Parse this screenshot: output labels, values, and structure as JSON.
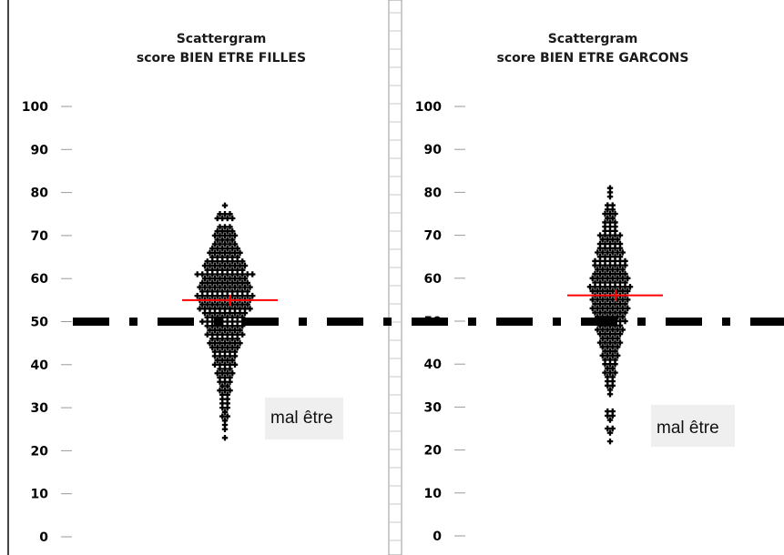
{
  "reference_line": {
    "value": 50,
    "color": "#000000"
  },
  "colors": {
    "points": "#000000",
    "mean": "#ff0000",
    "frame": "#444444",
    "annotation_bg": "#efefef"
  },
  "chart_data": [
    {
      "type": "scatter",
      "title_line1": "Scattergram",
      "title_line2": "score BIEN ETRE FILLES",
      "ylim": [
        0,
        100
      ],
      "yticks": [
        "0",
        "10",
        "20",
        "30",
        "40",
        "50",
        "60",
        "70",
        "80",
        "90",
        "100"
      ],
      "mean": 55,
      "annotation": "mal être",
      "points": [
        {
          "v": 77,
          "n": 1
        },
        {
          "v": 75,
          "n": 3
        },
        {
          "v": 74,
          "n": 4
        },
        {
          "v": 72,
          "n": 3
        },
        {
          "v": 71,
          "n": 4
        },
        {
          "v": 70,
          "n": 5
        },
        {
          "v": 69,
          "n": 4
        },
        {
          "v": 68,
          "n": 5
        },
        {
          "v": 67,
          "n": 6
        },
        {
          "v": 66,
          "n": 7
        },
        {
          "v": 65,
          "n": 6
        },
        {
          "v": 64,
          "n": 8
        },
        {
          "v": 63,
          "n": 9
        },
        {
          "v": 62,
          "n": 8
        },
        {
          "v": 61,
          "n": 12
        },
        {
          "v": 60,
          "n": 9
        },
        {
          "v": 59,
          "n": 10
        },
        {
          "v": 58,
          "n": 11
        },
        {
          "v": 57,
          "n": 10
        },
        {
          "v": 56,
          "n": 12
        },
        {
          "v": 55,
          "n": 11
        },
        {
          "v": 54,
          "n": 10
        },
        {
          "v": 53,
          "n": 11
        },
        {
          "v": 52,
          "n": 9
        },
        {
          "v": 51,
          "n": 8
        },
        {
          "v": 50,
          "n": 10
        },
        {
          "v": 49,
          "n": 8
        },
        {
          "v": 48,
          "n": 7
        },
        {
          "v": 47,
          "n": 8
        },
        {
          "v": 46,
          "n": 6
        },
        {
          "v": 45,
          "n": 7
        },
        {
          "v": 44,
          "n": 6
        },
        {
          "v": 43,
          "n": 5
        },
        {
          "v": 42,
          "n": 5
        },
        {
          "v": 41,
          "n": 4
        },
        {
          "v": 40,
          "n": 5
        },
        {
          "v": 39,
          "n": 3
        },
        {
          "v": 38,
          "n": 4
        },
        {
          "v": 37,
          "n": 3
        },
        {
          "v": 36,
          "n": 3
        },
        {
          "v": 35,
          "n": 2
        },
        {
          "v": 34,
          "n": 3
        },
        {
          "v": 33,
          "n": 2
        },
        {
          "v": 32,
          "n": 2
        },
        {
          "v": 31,
          "n": 2
        },
        {
          "v": 30,
          "n": 2
        },
        {
          "v": 29,
          "n": 1
        },
        {
          "v": 28,
          "n": 2
        },
        {
          "v": 27,
          "n": 1
        },
        {
          "v": 26,
          "n": 1
        },
        {
          "v": 25,
          "n": 1
        },
        {
          "v": 23,
          "n": 1
        }
      ]
    },
    {
      "type": "scatter",
      "title_line1": "Scattergram",
      "title_line2": "score BIEN ETRE GARCONS",
      "ylim": [
        0,
        100
      ],
      "yticks": [
        "0",
        "10",
        "20",
        "30",
        "40",
        "50",
        "60",
        "70",
        "80",
        "90",
        "100"
      ],
      "mean": 56,
      "annotation": "mal être",
      "points": [
        {
          "v": 81,
          "n": 1
        },
        {
          "v": 80,
          "n": 1
        },
        {
          "v": 79,
          "n": 1
        },
        {
          "v": 77,
          "n": 2
        },
        {
          "v": 76,
          "n": 2
        },
        {
          "v": 75,
          "n": 3
        },
        {
          "v": 74,
          "n": 2
        },
        {
          "v": 73,
          "n": 3
        },
        {
          "v": 72,
          "n": 3
        },
        {
          "v": 71,
          "n": 3
        },
        {
          "v": 70,
          "n": 5
        },
        {
          "v": 69,
          "n": 4
        },
        {
          "v": 68,
          "n": 5
        },
        {
          "v": 67,
          "n": 5
        },
        {
          "v": 66,
          "n": 6
        },
        {
          "v": 65,
          "n": 5
        },
        {
          "v": 64,
          "n": 7
        },
        {
          "v": 63,
          "n": 7
        },
        {
          "v": 62,
          "n": 6
        },
        {
          "v": 61,
          "n": 7
        },
        {
          "v": 60,
          "n": 8
        },
        {
          "v": 59,
          "n": 7
        },
        {
          "v": 58,
          "n": 9
        },
        {
          "v": 57,
          "n": 8
        },
        {
          "v": 56,
          "n": 7
        },
        {
          "v": 55,
          "n": 8
        },
        {
          "v": 54,
          "n": 7
        },
        {
          "v": 53,
          "n": 8
        },
        {
          "v": 52,
          "n": 7
        },
        {
          "v": 51,
          "n": 6
        },
        {
          "v": 50,
          "n": 7
        },
        {
          "v": 49,
          "n": 5
        },
        {
          "v": 48,
          "n": 6
        },
        {
          "v": 47,
          "n": 5
        },
        {
          "v": 46,
          "n": 4
        },
        {
          "v": 45,
          "n": 5
        },
        {
          "v": 44,
          "n": 4
        },
        {
          "v": 43,
          "n": 3
        },
        {
          "v": 42,
          "n": 4
        },
        {
          "v": 41,
          "n": 3
        },
        {
          "v": 40,
          "n": 3
        },
        {
          "v": 39,
          "n": 2
        },
        {
          "v": 38,
          "n": 3
        },
        {
          "v": 37,
          "n": 2
        },
        {
          "v": 36,
          "n": 2
        },
        {
          "v": 35,
          "n": 2
        },
        {
          "v": 34,
          "n": 1
        },
        {
          "v": 33,
          "n": 1
        },
        {
          "v": 29,
          "n": 2
        },
        {
          "v": 28,
          "n": 2
        },
        {
          "v": 27,
          "n": 1
        },
        {
          "v": 25,
          "n": 2
        },
        {
          "v": 24,
          "n": 1
        },
        {
          "v": 22,
          "n": 1
        }
      ]
    }
  ]
}
